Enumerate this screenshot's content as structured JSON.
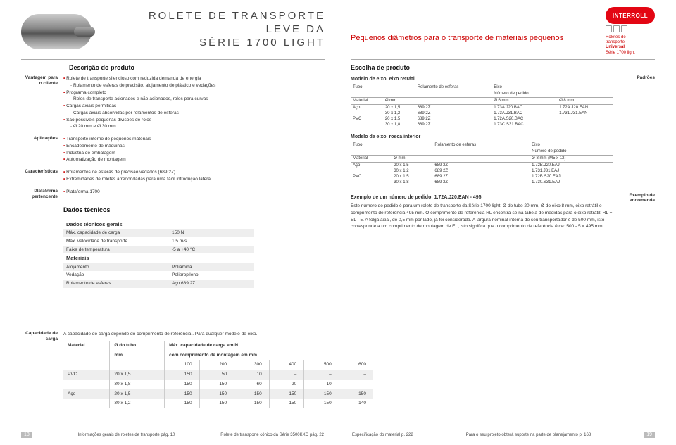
{
  "header": {
    "title_l1": "ROLETE DE TRANSPORTE",
    "title_l2": "LEVE DA",
    "title_l3": "SÉRIE 1700 LIGHT",
    "subtitle": "Pequenos diâmetros para o transporte de materiais pequenos",
    "brand": "INTERROLL",
    "brand_sub1": "Roletes de",
    "brand_sub2": "transporte",
    "brand_sub3": "Universal",
    "brand_sub4": "Série 1700 light"
  },
  "left": {
    "descricao": "Descrição do produto",
    "escolha": "Escolha de produto",
    "vantagem_lbl": "Vantagem para o cliente",
    "aplic_lbl": "Aplicações",
    "carac_lbl": "Características",
    "plat_lbl": "Plataforma pertencente",
    "dados_title": "Dados técnicos",
    "padroes_lbl": "Padrões",
    "exemplo_lbl": "Exemplo de encomenda",
    "vantagem": {
      "b1": "Rolete de transporte silencioso com reduzida demanda de energia",
      "b1s1": "Rolamento de esferas de precisão, alojamento de plástico e vedações",
      "b2": "Programa completo",
      "b2s1": "Rolos de transporte acionados e não-acionados, rolos para curvas",
      "b3": "Cargas axiais permitidas",
      "b3s1": "Cargas axiais absorvidas por rolamentos de esferas",
      "b4": "São possíveis pequenas divisões de rolos",
      "b4s1": "Ø 20 mm e Ø 30 mm"
    },
    "aplic": {
      "b1": "Transporte interno de pequenos materiais",
      "b2": "Encadeamento de máquinas",
      "b3": "Indústria de embalagem",
      "b4": "Automatização de montagem"
    },
    "carac": {
      "b1": "Rolamentos de esferas de precisão vedados (689 2Z)",
      "b2": "Extremidades de roletes arredondadas para uma fácil introdução lateral"
    },
    "plat": {
      "b1": "Plataforma 1700"
    },
    "tech": {
      "h1": "Dados técnicos gerais",
      "r1k": "Máx. capacidade de carga",
      "r1v": "150 N",
      "r2k": "Máx. velocidade de transporte",
      "r2v": "1,5 m/s",
      "r3k": "Faixa de temperatura",
      "r3v": "-5 a +40 °C",
      "h2": "Materiais",
      "r4k": "Alojamento",
      "r4v": "Poliamida",
      "r5k": "Vedação",
      "r5v": "Polipropileno",
      "r6k": "Rolamento de esferas",
      "r6v": "Aço 689 2Z"
    },
    "modelA": {
      "title": "Modelo de eixo, eixo retrátil",
      "c1": "Tubo",
      "c2": "Rolamento de esferas",
      "c3": "Eixo",
      "c3b": "Número de pedido",
      "h1": "Material",
      "h2": "Ø mm",
      "h3": "",
      "h4": "Ø 6 mm",
      "h5": "Ø 8 mm",
      "rows": [
        [
          "Aço",
          "20 x 1,5",
          "689 2Z",
          "1.73A.J20.BAC",
          "1.72A.J20.EAN"
        ],
        [
          "",
          "30 x 1,2",
          "689 2Z",
          "1.73A.J31.BAC",
          "1.731.J31.EAN"
        ],
        [
          "PVC",
          "20 x 1,5",
          "689 2Z",
          "1.72A.S20.BAC",
          ""
        ],
        [
          "",
          "30 x 1,8",
          "689 2Z",
          "1.73C.S31.BAC",
          ""
        ]
      ]
    },
    "modelB": {
      "title": "Modelo de eixo, rosca interior",
      "c1": "Tubo",
      "c2": "Rolamento de esferas",
      "c3": "Eixo",
      "c3b": "Número de pedido",
      "h1": "Material",
      "h2": "Ø mm",
      "h3": "",
      "h4": "Ø 8 mm (M5 x 12)",
      "rows": [
        [
          "Aço",
          "20 x 1,5",
          "689 2Z",
          "1.72B.J20.EAJ"
        ],
        [
          "",
          "30 x 1,2",
          "689 2Z",
          "1.731.J31.EAJ"
        ],
        [
          "PVC",
          "20 x 1,5",
          "689 2Z",
          "1.72B.S20.EAJ"
        ],
        [
          "",
          "30 x 1,8",
          "689 2Z",
          "1.730.S31.EAJ"
        ]
      ]
    },
    "exemplo_hdr": "Exemplo de um número de pedido: 1.72A.J20.EAN - 495",
    "exemplo_txt": "Este número de pedido é para um rolete de transporte da Série 1700 light, Ø do tubo 20 mm, Ø do eixo 8 mm, eixo retrátil e comprimento de referência 495 mm. O comprimento de referência RL encontra-se na tabela de medidas para o eixo retrátil: RL = EL - 5. A folga axial, de 0,5 mm por lado, já foi considerada. A largura nominal interna do seu transportador é de 500 mm, isto corresponde a um comprimento de montagem de EL, isto significa que o comprimento de referência é de: 500 - 5 = 495 mm."
  },
  "cap": {
    "lbl": "Capacidade de carga",
    "intro": "A capacidade de carga depende do comprimento de referência . Para qualquer modelo de eixo.",
    "h_mat": "Material",
    "h_d": "Ø do tubo",
    "h_d2": "mm",
    "h_max": "Máx. capacidade de carga em N",
    "h_sub": "com comprimento de montagem em mm",
    "cols": [
      "100",
      "200",
      "300",
      "400",
      "500",
      "600"
    ],
    "rows": [
      {
        "mat": "PVC",
        "d": "20 x 1,5",
        "v": [
          "150",
          "50",
          "10",
          "–",
          "–",
          "–"
        ],
        "g": 1
      },
      {
        "mat": "",
        "d": "30 x 1,8",
        "v": [
          "150",
          "150",
          "60",
          "20",
          "10",
          ""
        ],
        "g": 0
      },
      {
        "mat": "Aço",
        "d": "20 x 1,5",
        "v": [
          "150",
          "150",
          "150",
          "150",
          "150",
          "150"
        ],
        "g": 1
      },
      {
        "mat": "",
        "d": "30 x 1,2",
        "v": [
          "150",
          "150",
          "150",
          "150",
          "150",
          "140"
        ],
        "g": 0
      }
    ]
  },
  "footer": {
    "l1": "Informações gerais de roletes de transporte pág. 10",
    "l2": "Rolete de transporte cônico da Série 3500KXO pág. 22",
    "r1": "Especificação do material p. 222",
    "r2": "Para o seu projeto obterá suporte na parte de planejamento p. 168",
    "pL": "18",
    "pR": "19"
  },
  "colors": {
    "accent": "#c00",
    "brand": "#e30613",
    "grey": "#eee"
  }
}
